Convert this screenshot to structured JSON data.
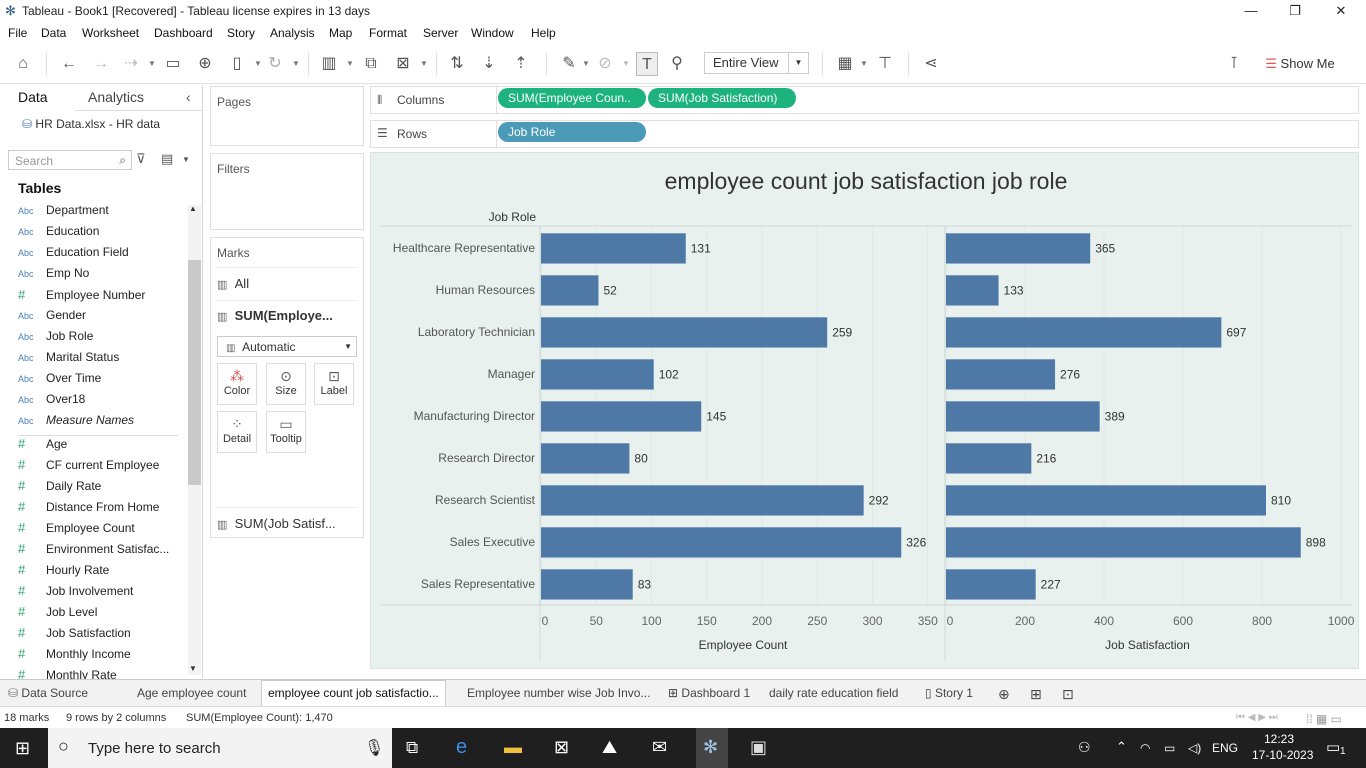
{
  "window": {
    "title": "Tableau - Book1 [Recovered] - Tableau license expires in 13 days"
  },
  "menu": [
    "File",
    "Data",
    "Worksheet",
    "Dashboard",
    "Story",
    "Analysis",
    "Map",
    "Format",
    "Server",
    "Window",
    "Help"
  ],
  "toolbar": {
    "view_select": "Entire View",
    "show_me": "Show Me"
  },
  "data_pane": {
    "tab_data": "Data",
    "tab_analytics": "Analytics",
    "source": "HR Data.xlsx - HR data",
    "search_placeholder": "Search",
    "tables_heading": "Tables",
    "dimensions": [
      "Department",
      "Education",
      "Education Field",
      "Emp No",
      "Employee Number",
      "Gender",
      "Job Role",
      "Marital Status",
      "Over Time",
      "Over18"
    ],
    "dimension_types": [
      "Abc",
      "Abc",
      "Abc",
      "Abc",
      "#",
      "Abc",
      "Abc",
      "Abc",
      "Abc",
      "Abc"
    ],
    "measure_names": "Measure Names",
    "measures": [
      "Age",
      "CF current Employee",
      "Daily Rate",
      "Distance From Home",
      "Employee Count",
      "Environment Satisfac...",
      "Hourly Rate",
      "Job Involvement",
      "Job Level",
      "Job Satisfaction",
      "Monthly Income",
      "Monthly Rate"
    ]
  },
  "shelves": {
    "pages": "Pages",
    "filters": "Filters",
    "marks": "Marks",
    "marks_all": "All",
    "marks_sel": "SUM(Employe...",
    "mark_type": "Automatic",
    "btn_color": "Color",
    "btn_size": "Size",
    "btn_label": "Label",
    "btn_detail": "Detail",
    "btn_tooltip": "Tooltip",
    "marks_second": "SUM(Job Satisf...",
    "columns_label": "Columns",
    "rows_label": "Rows",
    "col_pill_1": "SUM(Employee Coun..",
    "col_pill_2": "SUM(Job Satisfaction)",
    "row_pill_1": "Job Role"
  },
  "chart_data": {
    "type": "bar",
    "title": "employee count job satisfaction job role",
    "row_header": "Job Role",
    "categories": [
      "Healthcare Representative",
      "Human Resources",
      "Laboratory Technician",
      "Manager",
      "Manufacturing Director",
      "Research Director",
      "Research Scientist",
      "Sales Executive",
      "Sales Representative"
    ],
    "series": [
      {
        "name": "Employee Count",
        "values": [
          131,
          52,
          259,
          102,
          145,
          80,
          292,
          326,
          83
        ],
        "ticks": [
          0,
          50,
          100,
          150,
          200,
          250,
          300,
          350
        ],
        "xlim": [
          0,
          362
        ]
      },
      {
        "name": "Job Satisfaction",
        "values": [
          365,
          133,
          697,
          276,
          389,
          216,
          810,
          898,
          227
        ],
        "ticks": [
          0,
          200,
          400,
          600,
          800,
          1000
        ],
        "xlim": [
          0,
          1010
        ]
      }
    ],
    "bar_color": "#4e79a7"
  },
  "sheet_tabs": {
    "data_source": "Data Source",
    "t1": "Age employee count",
    "t2": "employee count job satisfactio...",
    "t3": "Employee number wise Job Invo...",
    "t4": "Dashboard 1",
    "t5": "daily rate education field",
    "t6": "Story 1"
  },
  "status": {
    "marks": "18 marks",
    "rows_cols": "9 rows by 2 columns",
    "sum": "SUM(Employee Count): 1,470"
  },
  "taskbar": {
    "search": "Type here to search",
    "lang": "ENG",
    "time": "12:23",
    "date": "17-10-2023",
    "notif": "1"
  }
}
